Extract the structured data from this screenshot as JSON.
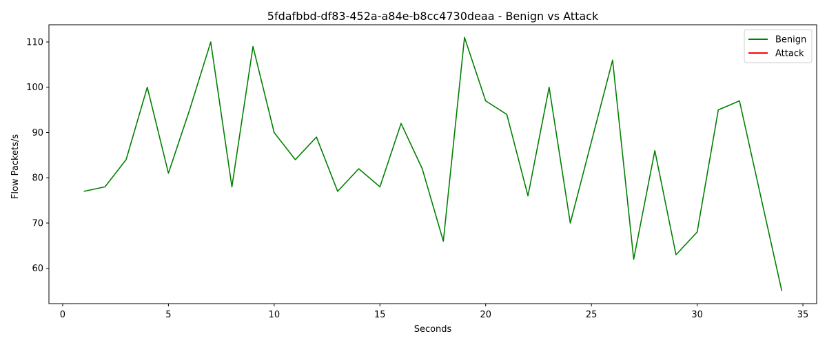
{
  "chart_data": {
    "type": "line",
    "title": "5fdafbbd-df83-452a-a84e-b8cc4730deaa - Benign vs Attack",
    "xlabel": "Seconds",
    "ylabel": "Flow Packets/s",
    "xlim": [
      -0.65,
      35.65
    ],
    "ylim": [
      52.2,
      113.8
    ],
    "xticks": [
      0,
      5,
      10,
      15,
      20,
      25,
      30,
      35
    ],
    "yticks": [
      60,
      70,
      80,
      90,
      100,
      110
    ],
    "grid": false,
    "legend_position": "top-right",
    "series": [
      {
        "name": "Benign",
        "color": "#008000",
        "x": [
          1,
          2,
          3,
          4,
          5,
          6,
          7,
          8,
          9,
          10,
          11,
          12,
          13,
          14,
          15,
          16,
          17,
          18,
          19,
          20,
          21,
          22,
          23,
          24,
          25,
          26,
          27,
          28,
          29,
          30,
          31,
          32,
          33,
          34
        ],
        "y": [
          77,
          78,
          84,
          100,
          81,
          95,
          110,
          78,
          109,
          90,
          84,
          89,
          77,
          82,
          78,
          92,
          82,
          66,
          111,
          97,
          94,
          76,
          100,
          70,
          88,
          106,
          62,
          86,
          63,
          68,
          95,
          97,
          76,
          55
        ]
      },
      {
        "name": "Attack",
        "color": "#ff0000",
        "x": [],
        "y": []
      }
    ]
  }
}
